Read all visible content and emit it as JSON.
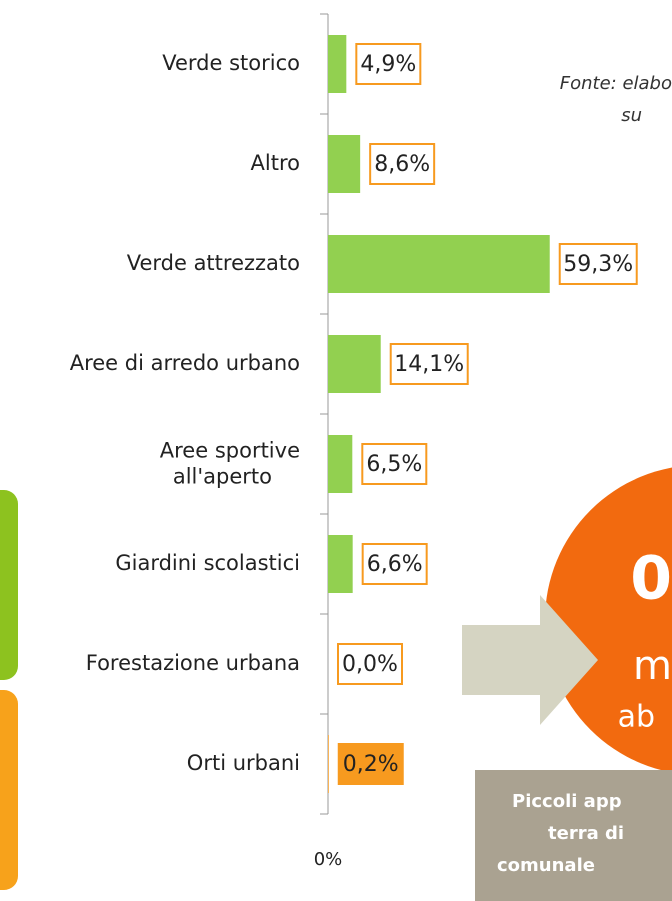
{
  "chart_data": {
    "type": "bar",
    "orientation": "horizontal",
    "categories": [
      "Verde storico",
      "Altro",
      "Verde attrezzato",
      "Aree di arredo urbano",
      "Aree sportive all'aperto",
      "Giardini scolastici",
      "Forestazione urbana",
      "Orti urbani"
    ],
    "values": [
      4.9,
      8.6,
      59.3,
      14.1,
      6.5,
      6.6,
      0.0,
      0.2
    ],
    "value_labels": [
      "4,9%",
      "8,6%",
      "59,3%",
      "14,1%",
      "6,5%",
      "6,6%",
      "0,0%",
      "0,2%"
    ],
    "colors": [
      "#92d050",
      "#92d050",
      "#92d050",
      "#92d050",
      "#92d050",
      "#92d050",
      "#92d050",
      "#f79a1f"
    ],
    "xlim": [
      0,
      92
    ],
    "xticks": [
      {
        "value": 0,
        "label": "0%"
      }
    ]
  },
  "source_lines": [
    "Fonte: elabo",
    "su"
  ],
  "circle_lines": [
    "0",
    "m",
    "ab"
  ],
  "box_lines": [
    "Piccoli app",
    "terra di",
    "comunale"
  ]
}
